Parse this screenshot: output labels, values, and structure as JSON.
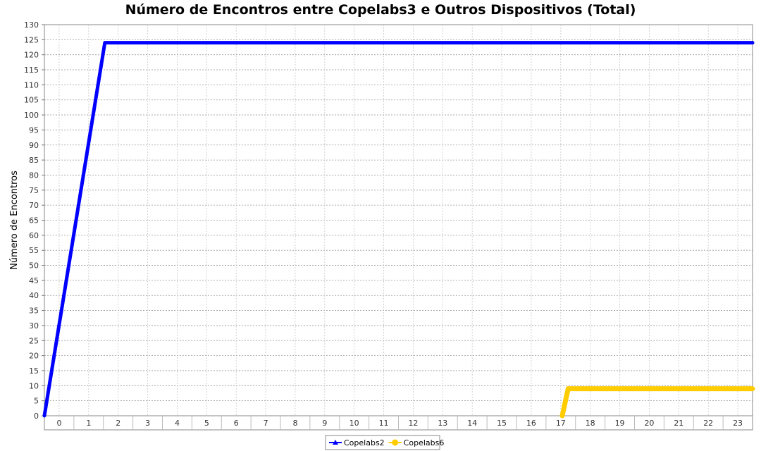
{
  "chart_data": {
    "type": "line",
    "title": "Número de Encontros entre Copelabs3 e Outros Dispositivos (Total)",
    "ylabel": "Número de Encontros",
    "xlabel": "",
    "categories": [
      "0",
      "1",
      "2",
      "3",
      "4",
      "5",
      "6",
      "7",
      "8",
      "9",
      "10",
      "11",
      "12",
      "13",
      "14",
      "15",
      "16",
      "17",
      "18",
      "19",
      "20",
      "21",
      "22",
      "23"
    ],
    "ylim": [
      0,
      130
    ],
    "yticks": [
      0,
      5,
      10,
      15,
      20,
      25,
      30,
      35,
      40,
      45,
      50,
      55,
      60,
      65,
      70,
      75,
      80,
      85,
      90,
      95,
      100,
      105,
      110,
      115,
      120,
      125,
      130
    ],
    "grid": true,
    "legend_position": "bottom",
    "series": [
      {
        "name": "Copelabs2",
        "color": "#0000ff",
        "points": [
          [
            -0.5,
            0
          ],
          [
            1.55,
            124
          ],
          [
            23.5,
            124
          ]
        ]
      },
      {
        "name": "Copelabs6",
        "color": "#ffcc00",
        "points": [
          [
            17.05,
            0
          ],
          [
            17.25,
            9
          ],
          [
            23.5,
            9
          ]
        ]
      }
    ]
  }
}
